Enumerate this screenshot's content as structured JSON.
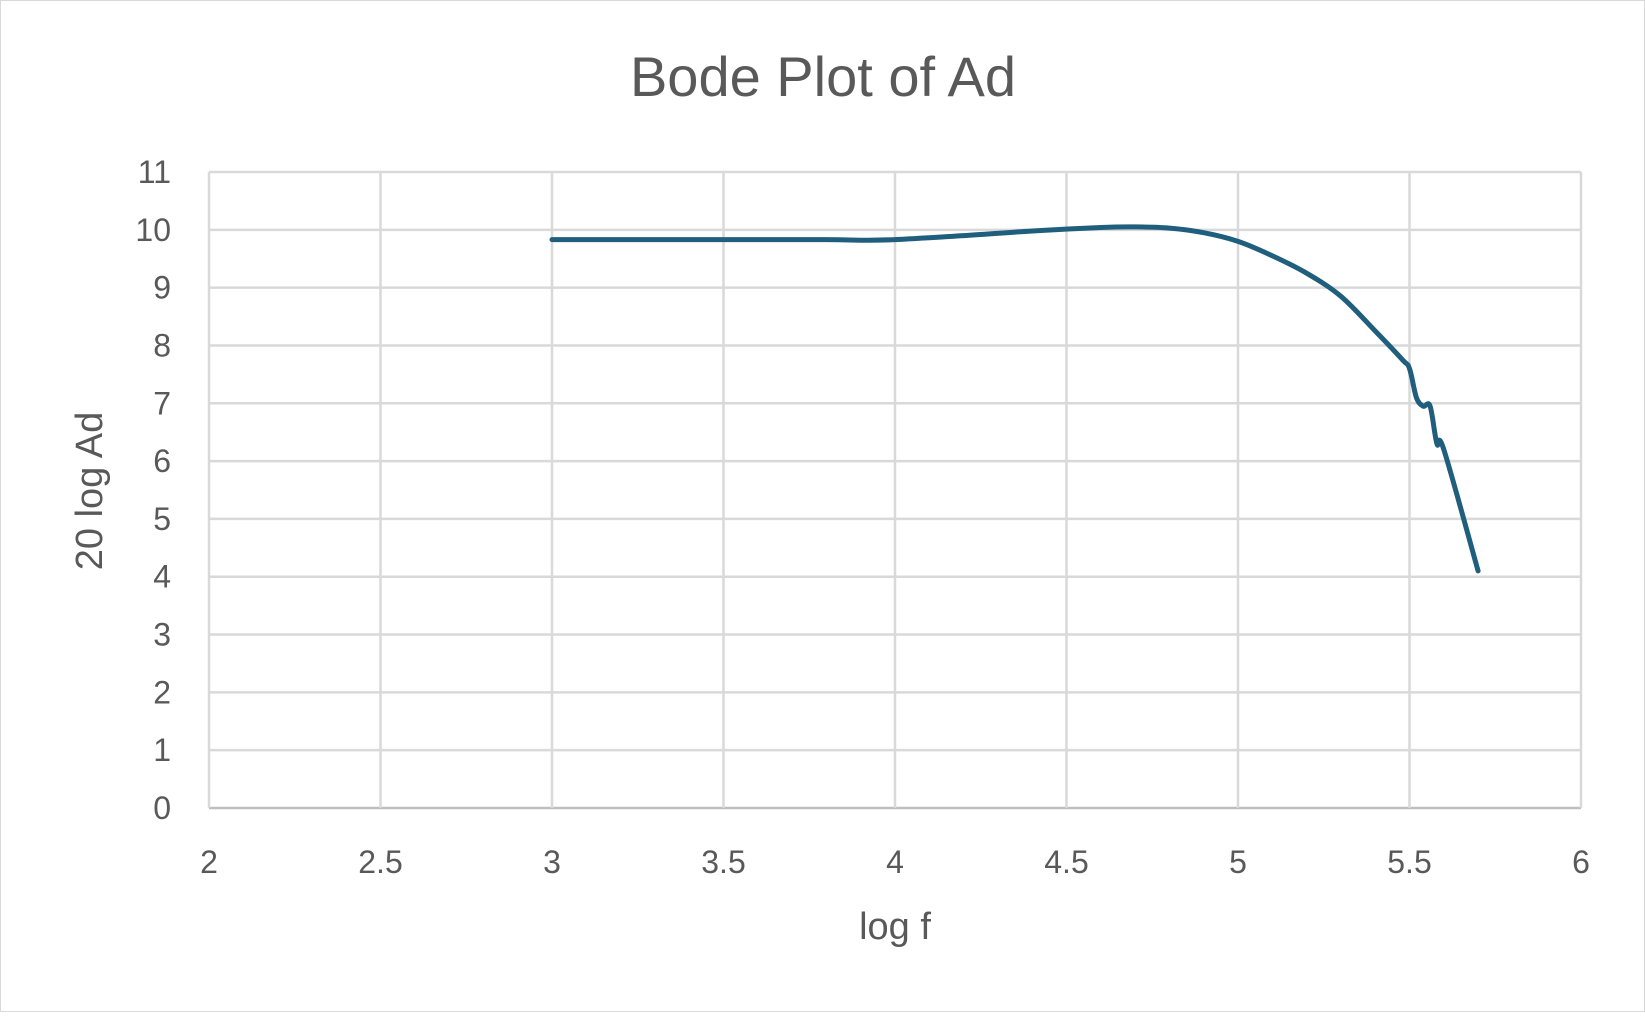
{
  "chart_data": {
    "type": "line",
    "title": "Bode Plot of Ad",
    "xlabel": "log f",
    "ylabel": "20 log Ad",
    "xlim": [
      2,
      6
    ],
    "ylim": [
      0,
      11
    ],
    "x_ticks": [
      "2",
      "2.5",
      "3",
      "3.5",
      "4",
      "4.5",
      "5",
      "5.5",
      "6"
    ],
    "y_ticks": [
      "0",
      "1",
      "2",
      "3",
      "4",
      "5",
      "6",
      "7",
      "8",
      "9",
      "10",
      "11"
    ],
    "grid": true,
    "series": [
      {
        "x": [
          3,
          3.5,
          3.8,
          3.9,
          4,
          4.2,
          4.4,
          4.6,
          4.7,
          4.8,
          4.9,
          5,
          5.1,
          5.2,
          5.3,
          5.4,
          5.48,
          5.5,
          5.52,
          5.54,
          5.56,
          5.58,
          5.6,
          5.7
        ],
        "y": [
          9.83,
          9.83,
          9.83,
          9.82,
          9.83,
          9.9,
          9.98,
          10.04,
          10.05,
          10.03,
          9.95,
          9.8,
          9.55,
          9.25,
          8.85,
          8.25,
          7.75,
          7.6,
          7.1,
          6.95,
          6.95,
          6.3,
          6.2,
          4.1
        ],
        "color": "#1f5f7d"
      }
    ]
  }
}
